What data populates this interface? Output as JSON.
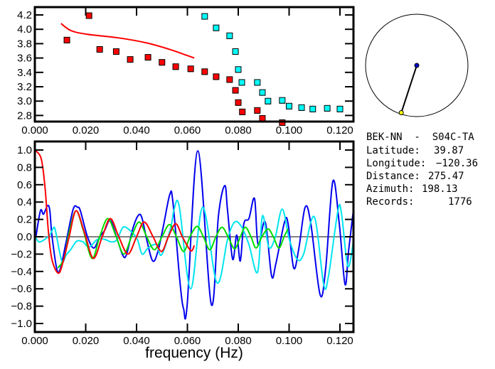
{
  "chart_data": [
    {
      "type": "scatter",
      "xlim": [
        0.0,
        0.125
      ],
      "ylim": [
        2.7,
        4.3
      ],
      "xticks": [
        "0.000",
        "0.020",
        "0.040",
        "0.060",
        "0.080",
        "0.100",
        "0.120"
      ],
      "yticks": [
        "4.2",
        "4.0",
        "3.8",
        "3.6",
        "3.4",
        "3.2",
        "3.0",
        "2.8"
      ],
      "grid": false,
      "series": [
        {
          "kind": "points",
          "color": "#ff0000",
          "points": [
            [
              0.0126,
              3.85
            ],
            [
              0.0213,
              4.19
            ],
            [
              0.0255,
              3.72
            ],
            [
              0.032,
              3.69
            ],
            [
              0.0375,
              3.58
            ],
            [
              0.0445,
              3.61
            ],
            [
              0.05,
              3.54
            ],
            [
              0.0554,
              3.48
            ],
            [
              0.0613,
              3.45
            ],
            [
              0.0668,
              3.41
            ],
            [
              0.0713,
              3.34
            ],
            [
              0.0766,
              3.3
            ],
            [
              0.0789,
              3.15
            ],
            [
              0.08,
              2.98
            ],
            [
              0.0816,
              2.85
            ],
            [
              0.0875,
              2.87
            ],
            [
              0.0895,
              2.76
            ],
            [
              0.0973,
              2.7
            ]
          ]
        },
        {
          "kind": "points",
          "color": "#00ffff",
          "points": [
            [
              0.0668,
              4.18
            ],
            [
              0.0713,
              4.02
            ],
            [
              0.0766,
              3.91
            ],
            [
              0.0789,
              3.69
            ],
            [
              0.08,
              3.44
            ],
            [
              0.0814,
              3.26
            ],
            [
              0.0875,
              3.26
            ],
            [
              0.0895,
              3.12
            ],
            [
              0.0917,
              3.0
            ],
            [
              0.0973,
              3.01
            ],
            [
              0.1,
              2.93
            ],
            [
              0.1049,
              2.91
            ],
            [
              0.1093,
              2.89
            ],
            [
              0.115,
              2.9
            ],
            [
              0.12,
              2.89
            ]
          ]
        },
        {
          "kind": "line",
          "color": "#ff0000",
          "points": [
            [
              0.0103,
              4.08
            ],
            [
              0.0143,
              3.98
            ],
            [
              0.0207,
              3.93
            ],
            [
              0.033,
              3.88
            ],
            [
              0.044,
              3.81
            ],
            [
              0.053,
              3.72
            ],
            [
              0.0627,
              3.6
            ]
          ]
        }
      ]
    },
    {
      "type": "line",
      "xlabel": "frequency (Hz)",
      "xlim": [
        0.0,
        0.125
      ],
      "ylim": [
        -1.15,
        1.1
      ],
      "xticks": [
        "0.000",
        "0.020",
        "0.040",
        "0.060",
        "0.080",
        "0.100",
        "0.120"
      ],
      "yticks": [
        "1.0",
        "0.8",
        "0.6",
        "0.4",
        "0.2",
        "0.0",
        "−0.2",
        "−0.4",
        "−0.6",
        "−0.8",
        "−1.0"
      ],
      "zero_line": true,
      "grid": false,
      "series": [
        {
          "color": "#0000ee",
          "points": [
            [
              0.0003,
              -0.02
            ],
            [
              0.0022,
              0.3
            ],
            [
              0.0034,
              0.26
            ],
            [
              0.005,
              0.36
            ],
            [
              0.0059,
              0.3
            ],
            [
              0.0067,
              0.02
            ],
            [
              0.0087,
              -0.38
            ],
            [
              0.0101,
              -0.36
            ],
            [
              0.0123,
              -0.06
            ],
            [
              0.0151,
              0.32
            ],
            [
              0.0168,
              0.34
            ],
            [
              0.0179,
              0.3
            ],
            [
              0.0207,
              0.0
            ],
            [
              0.0232,
              -0.13
            ],
            [
              0.0255,
              0.0
            ],
            [
              0.0274,
              0.07
            ],
            [
              0.0297,
              0.19
            ],
            [
              0.0324,
              -0.03
            ],
            [
              0.0347,
              -0.22
            ],
            [
              0.0361,
              -0.2
            ],
            [
              0.0386,
              0.1
            ],
            [
              0.0408,
              0.25
            ],
            [
              0.0422,
              0.21
            ],
            [
              0.0442,
              -0.06
            ],
            [
              0.0464,
              -0.28
            ],
            [
              0.0484,
              -0.17
            ],
            [
              0.0506,
              0.13
            ],
            [
              0.0531,
              0.49
            ],
            [
              0.0543,
              0.4
            ],
            [
              0.0571,
              -0.53
            ],
            [
              0.0585,
              -0.83
            ],
            [
              0.0599,
              -0.79
            ],
            [
              0.0641,
              0.99
            ],
            [
              0.0694,
              -0.78
            ],
            [
              0.0722,
              0.24
            ],
            [
              0.0747,
              0.59
            ],
            [
              0.0758,
              0.3
            ],
            [
              0.0778,
              -0.26
            ],
            [
              0.0794,
              0.02
            ],
            [
              0.0808,
              -0.28
            ],
            [
              0.0822,
              0.15
            ],
            [
              0.0842,
              0.21
            ],
            [
              0.0864,
              0.44
            ],
            [
              0.0878,
              -0.09
            ],
            [
              0.0906,
              0.17
            ],
            [
              0.0931,
              -0.45
            ],
            [
              0.0948,
              -0.31
            ],
            [
              0.0982,
              0.17
            ],
            [
              0.0996,
              0.15
            ],
            [
              0.1018,
              -0.36
            ],
            [
              0.1038,
              -0.14
            ],
            [
              0.1063,
              0.34
            ],
            [
              0.1085,
              0.16
            ],
            [
              0.1122,
              -0.67
            ],
            [
              0.1144,
              -0.36
            ],
            [
              0.1172,
              0.64
            ],
            [
              0.1197,
              0.16
            ],
            [
              0.122,
              -0.55
            ],
            [
              0.1234,
              -0.16
            ],
            [
              0.1253,
              0.31
            ]
          ]
        },
        {
          "color": "#00e5ee",
          "points": [
            [
              0.0003,
              -0.01
            ],
            [
              0.0017,
              -0.06
            ],
            [
              0.0039,
              -0.03
            ],
            [
              0.0059,
              0.02
            ],
            [
              0.0073,
              0.1
            ],
            [
              0.0081,
              0.07
            ],
            [
              0.0106,
              -0.28
            ],
            [
              0.0123,
              -0.21
            ],
            [
              0.0143,
              -0.14
            ],
            [
              0.0165,
              -0.05
            ],
            [
              0.019,
              -0.06
            ],
            [
              0.0213,
              -0.12
            ],
            [
              0.0246,
              -0.03
            ],
            [
              0.0274,
              -0.03
            ],
            [
              0.0302,
              -0.06
            ],
            [
              0.0324,
              -0.03
            ],
            [
              0.0347,
              0.11
            ],
            [
              0.0375,
              0.07
            ],
            [
              0.0403,
              -0.03
            ],
            [
              0.0422,
              -0.2
            ],
            [
              0.0445,
              -0.13
            ],
            [
              0.0478,
              -0.09
            ],
            [
              0.0498,
              -0.21
            ],
            [
              0.0534,
              0.1
            ],
            [
              0.0548,
              0.32
            ],
            [
              0.0568,
              0.35
            ],
            [
              0.0613,
              -0.6
            ],
            [
              0.066,
              0.34
            ],
            [
              0.0716,
              -0.53
            ],
            [
              0.0758,
              -0.03
            ],
            [
              0.0786,
              0.17
            ],
            [
              0.0814,
              0.11
            ],
            [
              0.0842,
              -0.09
            ],
            [
              0.0876,
              -0.41
            ],
            [
              0.0895,
              0.24
            ],
            [
              0.092,
              -0.12
            ],
            [
              0.0945,
              -0.01
            ],
            [
              0.0973,
              0.32
            ],
            [
              0.1001,
              -0.03
            ],
            [
              0.1032,
              -0.26
            ],
            [
              0.1057,
              -0.2
            ],
            [
              0.1099,
              0.23
            ],
            [
              0.1136,
              -0.55
            ],
            [
              0.1155,
              -0.45
            ],
            [
              0.1192,
              0.3
            ],
            [
              0.1206,
              0.27
            ],
            [
              0.1231,
              -0.34
            ],
            [
              0.1253,
              -0.05
            ]
          ]
        },
        {
          "color": "#00dd00",
          "points": [
            [
              0.009,
              -0.36
            ],
            [
              0.0115,
              -0.25
            ],
            [
              0.0135,
              0.05
            ],
            [
              0.0162,
              0.3
            ],
            [
              0.019,
              0.08
            ],
            [
              0.0225,
              -0.25
            ],
            [
              0.0255,
              0.0
            ],
            [
              0.0287,
              0.21
            ],
            [
              0.032,
              0.0
            ],
            [
              0.035,
              -0.2
            ],
            [
              0.038,
              0.0
            ],
            [
              0.041,
              0.17
            ],
            [
              0.044,
              0.0
            ],
            [
              0.047,
              -0.15
            ],
            [
              0.05,
              0.0
            ],
            [
              0.0529,
              0.14
            ],
            [
              0.0557,
              0.0
            ],
            [
              0.0585,
              -0.17
            ],
            [
              0.061,
              0.0
            ],
            [
              0.0638,
              0.12
            ],
            [
              0.0663,
              0.0
            ],
            [
              0.0688,
              -0.15
            ],
            [
              0.0712,
              0.0
            ],
            [
              0.0736,
              0.11
            ],
            [
              0.076,
              0.0
            ],
            [
              0.0786,
              -0.14
            ],
            [
              0.0808,
              0.0
            ],
            [
              0.0828,
              0.11
            ],
            [
              0.085,
              0.0
            ],
            [
              0.087,
              -0.13
            ],
            [
              0.0893,
              0.0
            ],
            [
              0.0917,
              0.09
            ],
            [
              0.0938,
              0.0
            ],
            [
              0.096,
              -0.13
            ],
            [
              0.098,
              0.0
            ],
            [
              0.0996,
              0.09
            ]
          ]
        },
        {
          "color": "#ff0000",
          "points": [
            [
              0.0,
              1.0
            ],
            [
              0.0025,
              0.9
            ],
            [
              0.004,
              0.57
            ],
            [
              0.0053,
              0.07
            ],
            [
              0.0067,
              -0.26
            ],
            [
              0.0092,
              -0.42
            ],
            [
              0.011,
              -0.3
            ],
            [
              0.0135,
              0.0
            ],
            [
              0.0162,
              0.3
            ],
            [
              0.0195,
              0.05
            ],
            [
              0.023,
              -0.25
            ],
            [
              0.0265,
              0.0
            ],
            [
              0.0297,
              0.21
            ],
            [
              0.033,
              0.0
            ],
            [
              0.0366,
              -0.2
            ],
            [
              0.04,
              0.0
            ],
            [
              0.043,
              0.17
            ],
            [
              0.0465,
              0.0
            ],
            [
              0.0498,
              -0.17
            ],
            [
              0.0525,
              0.0
            ],
            [
              0.0554,
              0.15
            ],
            [
              0.058,
              0.0
            ],
            [
              0.0613,
              -0.16
            ],
            [
              0.0627,
              -0.1
            ]
          ]
        }
      ]
    }
  ],
  "map": {
    "azimuth_deg": 198.13,
    "colors": {
      "station_a": "#0000cc",
      "station_b": "#ffff00",
      "circle": "#000000"
    }
  },
  "info": {
    "title": "BEK-NN  -  S04C-TA",
    "latitude_label": "Latitude:",
    "latitude": "39.87",
    "longitude_label": "Longitude:",
    "longitude": "−120.36",
    "distance_label": "Distance:",
    "distance": "275.47",
    "azimuth_label": "Azimuth:",
    "azimuth": "198.13",
    "records_label": "Records:",
    "records": "1776"
  }
}
